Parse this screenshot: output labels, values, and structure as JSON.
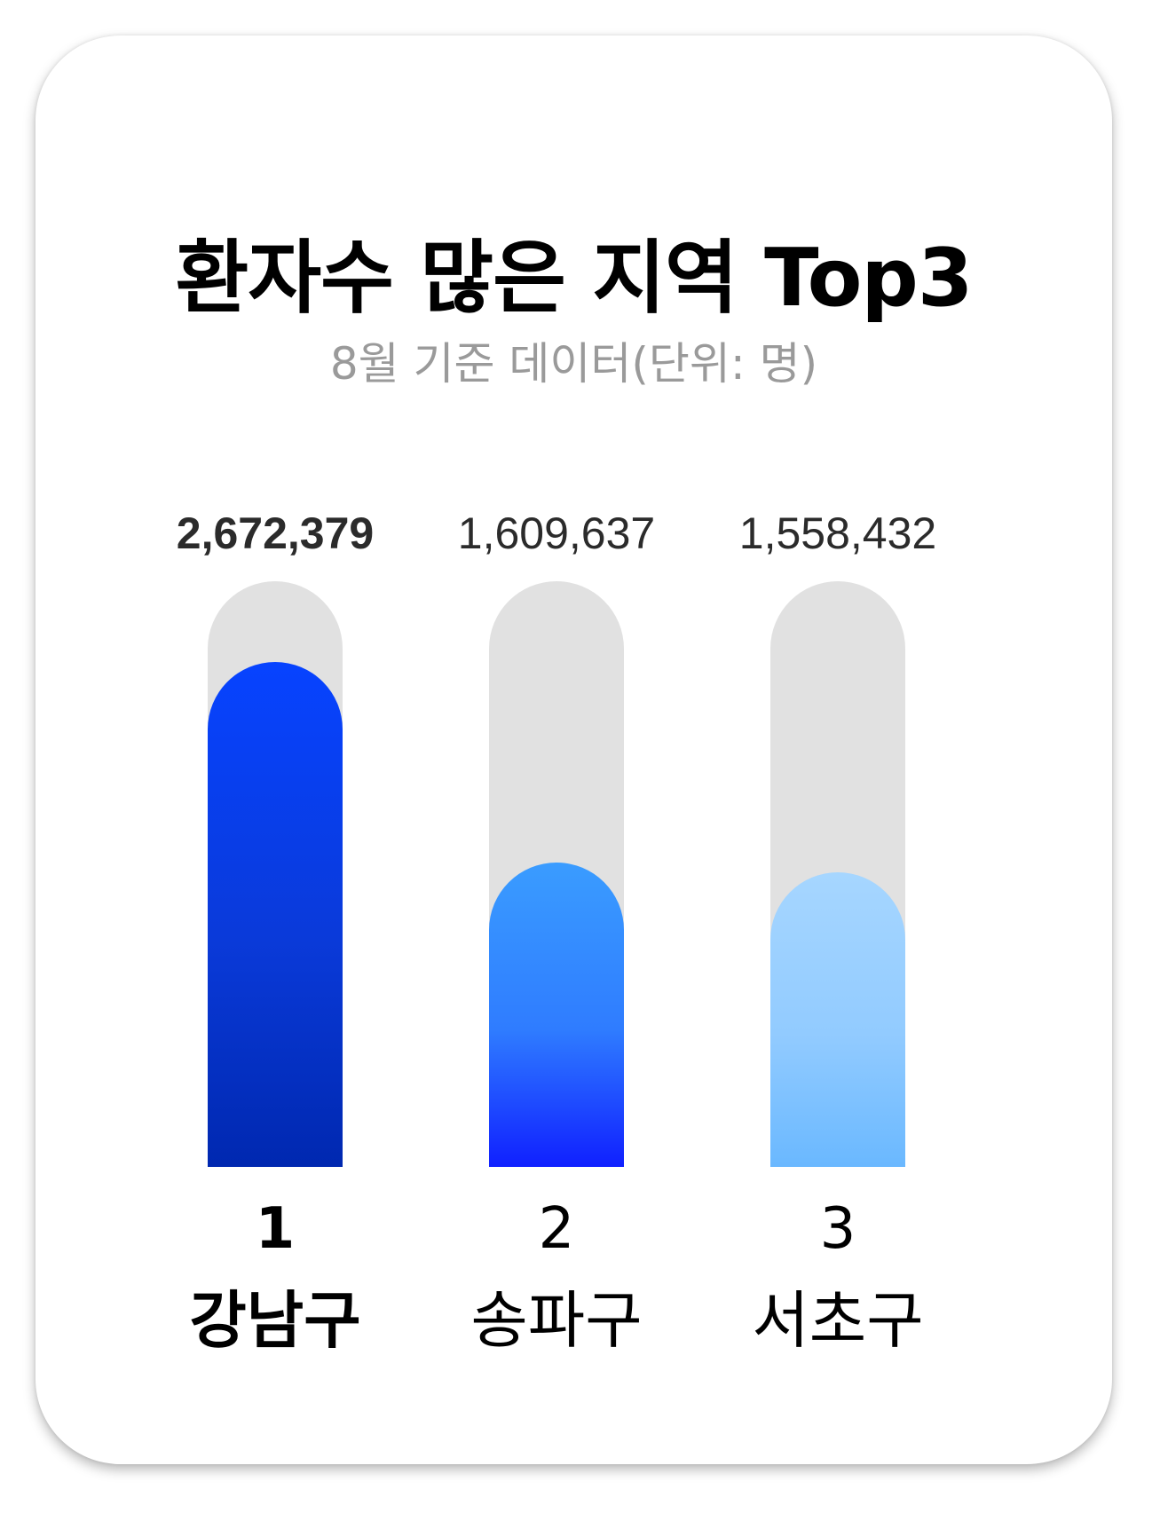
{
  "title": "환자수 많은 지역 Top3",
  "subtitle": "8월 기준 데이터(단위: 명)",
  "chart_data": {
    "type": "bar",
    "title": "환자수 많은 지역 Top3",
    "subtitle": "8월 기준 데이터(단위: 명)",
    "categories": [
      "강남구",
      "송파구",
      "서초구"
    ],
    "ranks": [
      "1",
      "2",
      "3"
    ],
    "values": [
      2672379,
      1609637,
      1558432
    ],
    "value_labels": [
      "2,672,379",
      "1,609,637",
      "1,558,432"
    ],
    "ylim": [
      0,
      3100000
    ],
    "colors": {
      "bar1": [
        "#0743ff",
        "#0a3ad9",
        "#0028b0"
      ],
      "bar2": [
        "#3a9cff",
        "#2f7cff",
        "#1020ff"
      ],
      "bar3": [
        "#a6d6ff",
        "#92cbff",
        "#6ab8ff"
      ],
      "track": "#e1e1e1"
    }
  }
}
